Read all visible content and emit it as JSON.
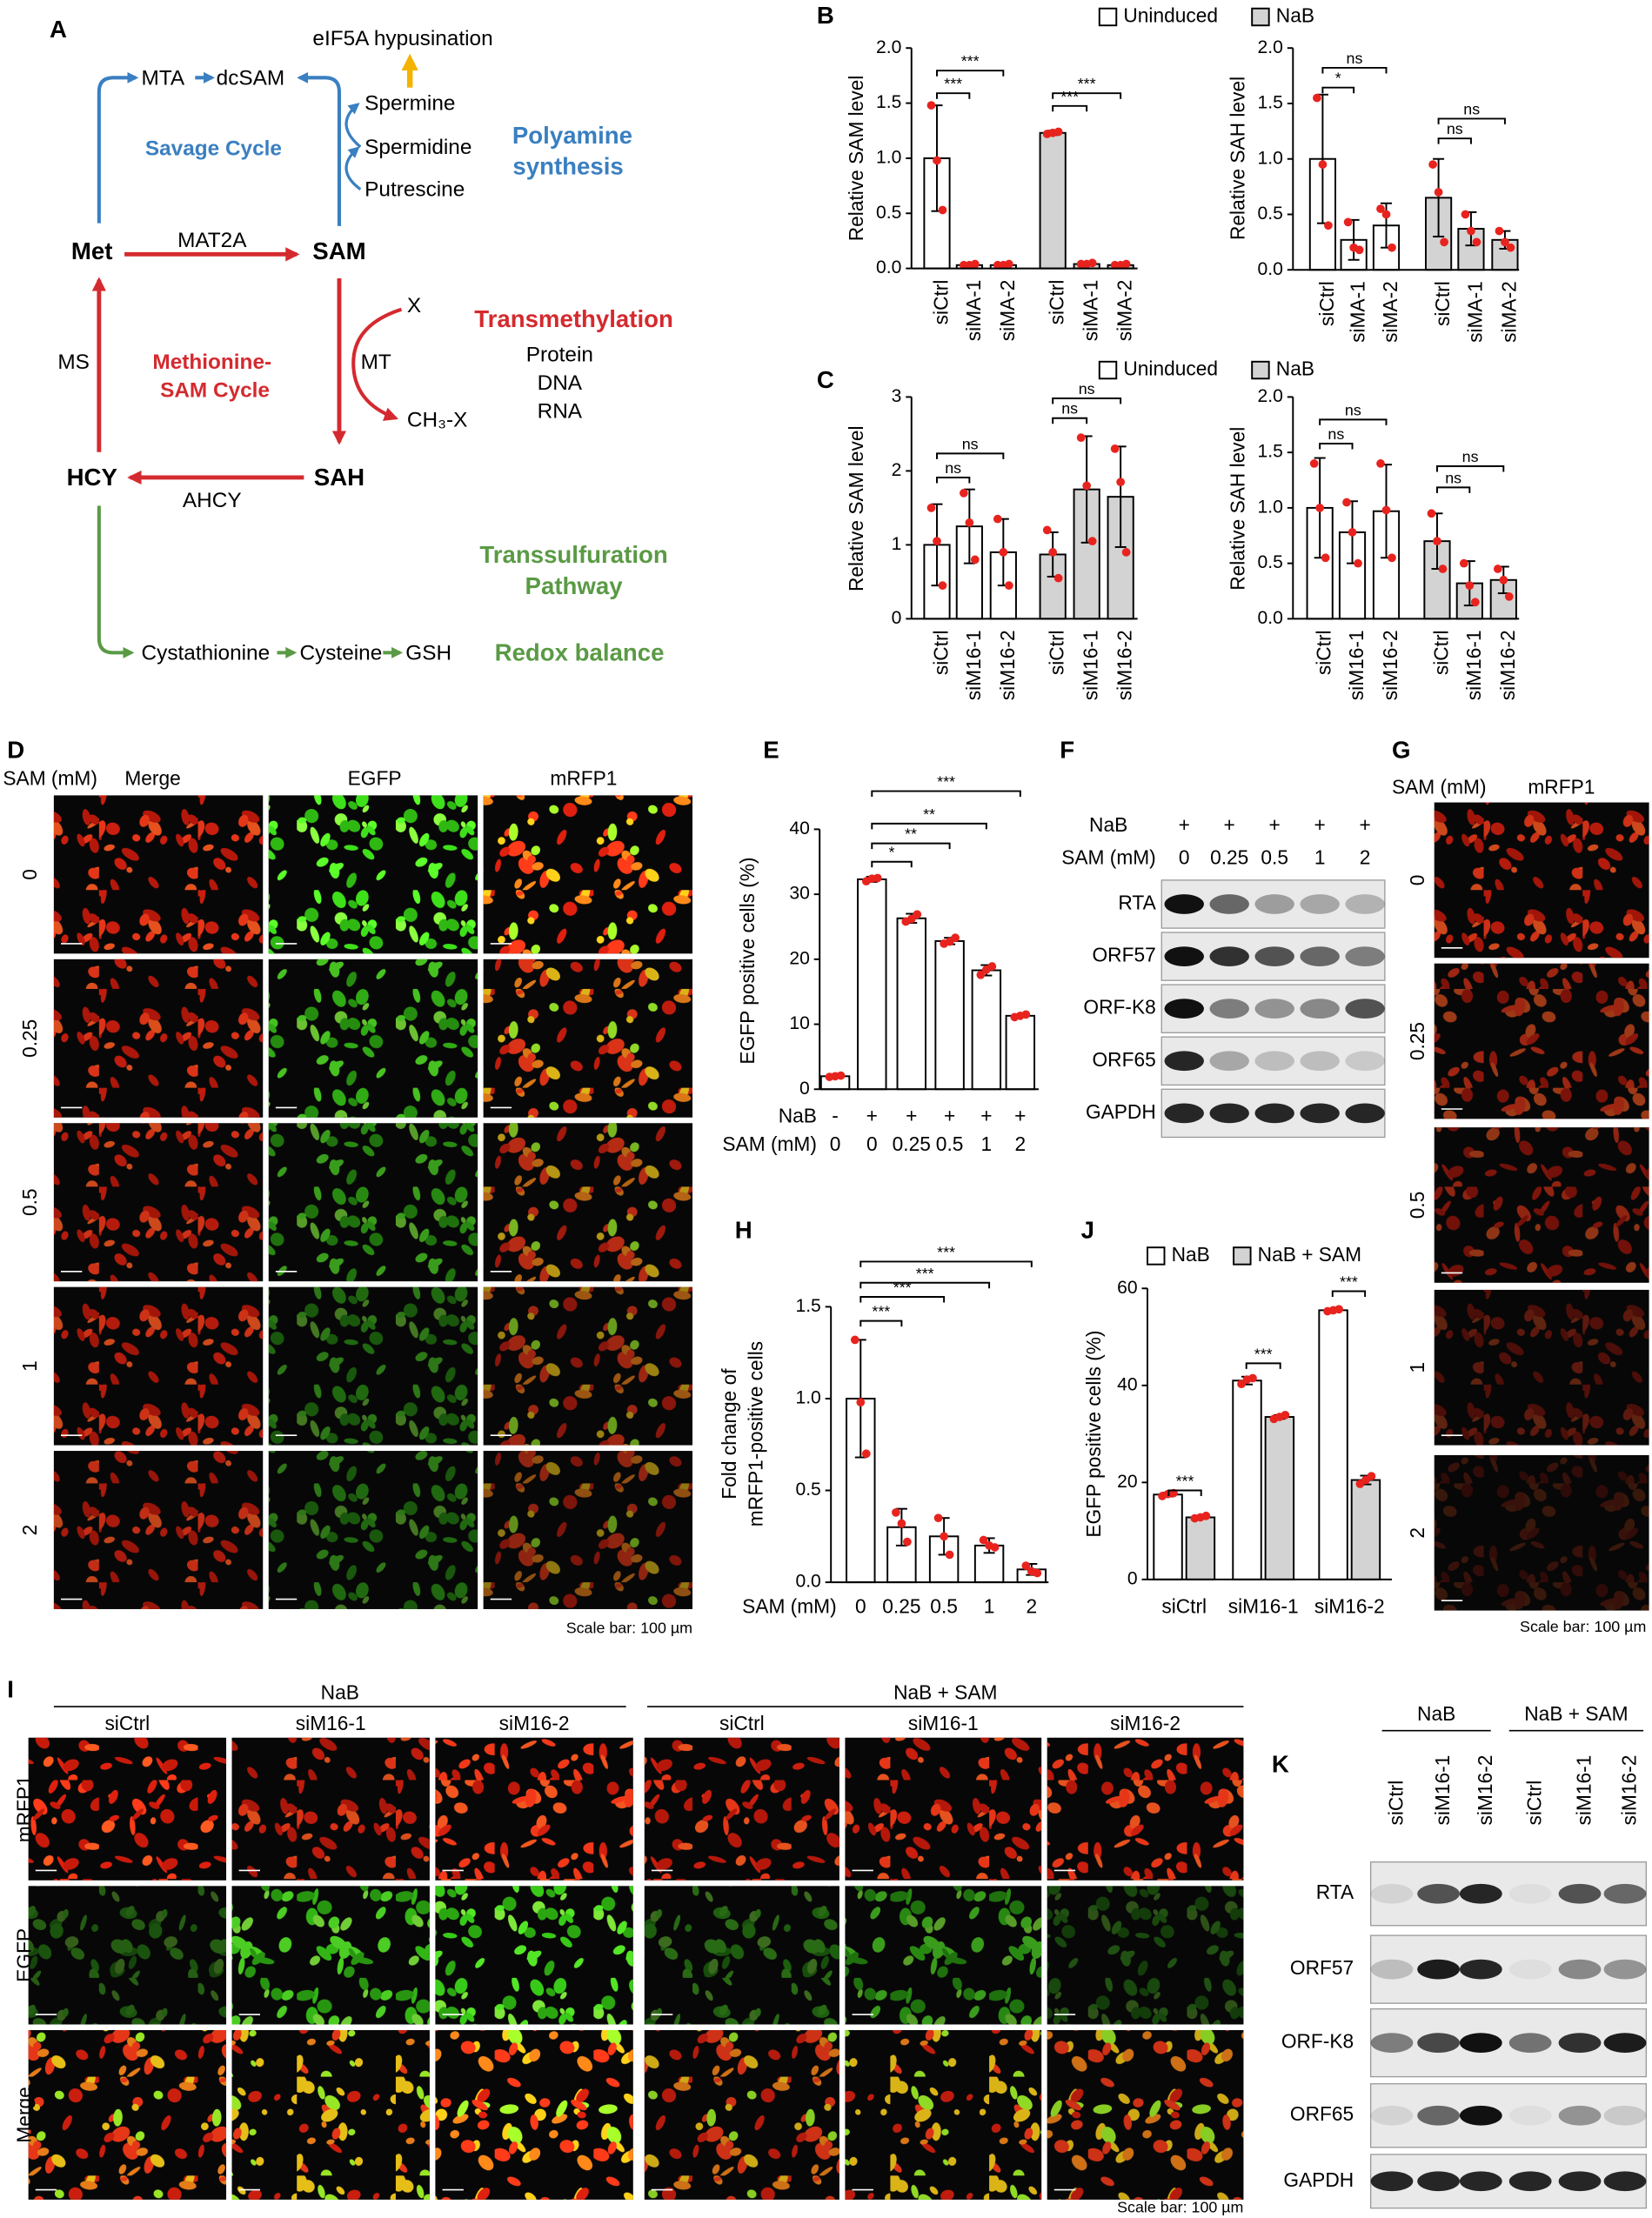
{
  "panel_labels": [
    "A",
    "B",
    "C",
    "D",
    "E",
    "F",
    "G",
    "H",
    "I",
    "J",
    "K"
  ],
  "diagram": {
    "texts": [
      "eIF5A hypusination",
      "MTA",
      "dcSAM",
      "Spermine",
      "Spermidine",
      "Putrescine",
      "Savage Cycle",
      "Polyamine",
      "synthesis",
      "Met",
      "MAT2A",
      "SAM",
      "MS",
      "Methionine-",
      "SAM Cycle",
      "MT",
      "X",
      "CH₃-X",
      "Transmethylation",
      "Protein",
      "DNA",
      "RNA",
      "HCY",
      "SAH",
      "AHCY",
      "Transsulfuration",
      "Pathway",
      "Cystathionine",
      "Cysteine",
      "GSH",
      "Redox balance"
    ]
  },
  "chart_data": [
    {
      "type": "bar",
      "ylabel": "Relative SAM level",
      "ylim": [
        0,
        2
      ],
      "yticks": [
        {
          "value": 0,
          "label": "0.0"
        },
        {
          "value": 0.5,
          "label": "0.5"
        },
        {
          "value": 1,
          "label": "1.0"
        },
        {
          "value": 1.5,
          "label": "1.5"
        },
        {
          "value": 2,
          "label": "2.0"
        }
      ],
      "point_color": "#e8231e",
      "categories": [
        "siCtrl",
        "siMA-1",
        "siMA-2",
        "siCtrl",
        "siMA-1",
        "siMA-2"
      ],
      "series": [
        {
          "name": "Uninduced",
          "color": "#ffffff",
          "values": [
            1.0,
            0.03,
            0.03,
            null,
            null,
            null
          ],
          "errors": [
            0.48,
            0.01,
            0.01,
            null,
            null,
            null
          ],
          "points": [
            [
              1.48,
              0.98,
              0.53
            ],
            [
              0.03,
              0.03,
              0.04
            ],
            [
              0.03,
              0.03,
              0.04
            ],
            null,
            null,
            null
          ]
        },
        {
          "name": "NaB",
          "color": "#d3d3d3",
          "values": [
            null,
            null,
            null,
            1.23,
            0.04,
            0.03
          ],
          "errors": [
            null,
            null,
            null,
            0.02,
            0.01,
            0.01
          ],
          "points": [
            null,
            null,
            null,
            [
              1.22,
              1.23,
              1.24
            ],
            [
              0.04,
              0.04,
              0.05
            ],
            [
              0.03,
              0.03,
              0.04
            ]
          ]
        }
      ],
      "annotations": [
        "***",
        "***",
        "***",
        "***"
      ]
    },
    {
      "type": "bar",
      "ylabel": "Relative SAH level",
      "ylim": [
        0,
        2
      ],
      "yticks": [
        {
          "value": 0,
          "label": "0.0"
        },
        {
          "value": 0.5,
          "label": "0.5"
        },
        {
          "value": 1,
          "label": "1.0"
        },
        {
          "value": 1.5,
          "label": "1.5"
        },
        {
          "value": 2,
          "label": "2.0"
        }
      ],
      "point_color": "#e8231e",
      "categories": [
        "siCtrl",
        "siMA-1",
        "siMA-2",
        "siCtrl",
        "siMA-1",
        "siMA-2"
      ],
      "series": [
        {
          "name": "Uninduced",
          "color": "#ffffff",
          "values": [
            1.0,
            0.27,
            0.4,
            null,
            null,
            null
          ],
          "errors": [
            0.58,
            0.18,
            0.2,
            null,
            null,
            null
          ],
          "points": [
            [
              1.55,
              0.95,
              0.4
            ],
            [
              0.43,
              0.2,
              0.18
            ],
            [
              0.55,
              0.5,
              0.2
            ],
            null,
            null,
            null
          ]
        },
        {
          "name": "NaB",
          "color": "#d3d3d3",
          "values": [
            null,
            null,
            null,
            0.65,
            0.37,
            0.27
          ],
          "errors": [
            null,
            null,
            null,
            0.35,
            0.15,
            0.08
          ],
          "points": [
            null,
            null,
            null,
            [
              0.95,
              0.7,
              0.25
            ],
            [
              0.5,
              0.35,
              0.25
            ],
            [
              0.35,
              0.25,
              0.2
            ]
          ]
        }
      ],
      "annotations": [
        "ns",
        "*",
        "ns",
        "ns"
      ]
    },
    {
      "type": "bar",
      "ylabel": "Relative SAM level",
      "ylim": [
        0,
        3
      ],
      "yticks": [
        0,
        1,
        2,
        3
      ],
      "point_color": "#e8231e",
      "categories": [
        "siCtrl",
        "siM16-1",
        "siM16-2",
        "siCtrl",
        "siM16-1",
        "siM16-2"
      ],
      "series": [
        {
          "name": "Uninduced",
          "color": "#ffffff",
          "values": [
            1.0,
            1.25,
            0.9,
            null,
            null,
            null
          ],
          "errors": [
            0.55,
            0.5,
            0.45,
            null,
            null,
            null
          ],
          "points": [
            [
              1.5,
              1.05,
              0.45
            ],
            [
              1.7,
              1.3,
              0.8
            ],
            [
              1.35,
              0.9,
              0.45
            ],
            null,
            null,
            null
          ]
        },
        {
          "name": "NaB",
          "color": "#d3d3d3",
          "values": [
            null,
            null,
            null,
            0.87,
            1.75,
            1.65
          ],
          "errors": [
            null,
            null,
            null,
            0.3,
            0.72,
            0.68
          ],
          "points": [
            null,
            null,
            null,
            [
              1.2,
              0.9,
              0.55
            ],
            [
              2.45,
              1.8,
              1.05
            ],
            [
              2.3,
              1.85,
              0.9
            ]
          ]
        }
      ],
      "annotations": [
        "ns",
        "ns",
        "ns",
        "ns"
      ]
    },
    {
      "type": "bar",
      "ylabel": "Relative SAH level",
      "ylim": [
        0,
        2
      ],
      "yticks": [
        {
          "value": 0,
          "label": "0.0"
        },
        {
          "value": 0.5,
          "label": "0.5"
        },
        {
          "value": 1,
          "label": "1.0"
        },
        {
          "value": 1.5,
          "label": "1.5"
        },
        {
          "value": 2,
          "label": "2.0"
        }
      ],
      "point_color": "#e8231e",
      "categories": [
        "siCtrl",
        "siM16-1",
        "siM16-2",
        "siCtrl",
        "siM16-1",
        "siM16-2"
      ],
      "series": [
        {
          "name": "Uninduced",
          "color": "#ffffff",
          "values": [
            1.0,
            0.78,
            0.97,
            null,
            null,
            null
          ],
          "errors": [
            0.45,
            0.28,
            0.42,
            null,
            null,
            null
          ],
          "points": [
            [
              1.4,
              1.0,
              0.55
            ],
            [
              1.05,
              0.78,
              0.5
            ],
            [
              1.4,
              0.98,
              0.55
            ],
            null,
            null,
            null
          ]
        },
        {
          "name": "NaB",
          "color": "#d3d3d3",
          "values": [
            null,
            null,
            null,
            0.7,
            0.32,
            0.35
          ],
          "errors": [
            null,
            null,
            null,
            0.25,
            0.2,
            0.12
          ],
          "points": [
            null,
            null,
            null,
            [
              0.95,
              0.7,
              0.45
            ],
            [
              0.5,
              0.3,
              0.15
            ],
            [
              0.45,
              0.35,
              0.2
            ]
          ]
        }
      ],
      "annotations": [
        "ns",
        "ns",
        "ns",
        "ns"
      ]
    },
    {
      "type": "bar",
      "ylabel": "EGFP positive cells (%)",
      "ylim": [
        0,
        40
      ],
      "yticks": [
        0,
        10,
        20,
        30,
        40
      ],
      "point_color": "#e8231e",
      "category_rows": [
        {
          "label": "NaB",
          "values": [
            "-",
            "+",
            "+",
            "+",
            "+",
            "+"
          ]
        },
        {
          "label": "SAM (mM)",
          "values": [
            "0",
            "0",
            "0.25",
            "0.5",
            "1",
            "2"
          ]
        }
      ],
      "series": [
        {
          "color": "#ffffff",
          "values": [
            2.0,
            32.3,
            26.3,
            22.8,
            18.3,
            11.3
          ],
          "errors": [
            0.2,
            0.4,
            0.7,
            0.5,
            0.8,
            0.2
          ],
          "points": [
            [
              1.9,
              2.0,
              2.1
            ],
            [
              32.0,
              32.4,
              32.5
            ],
            [
              25.8,
              26.2,
              26.9
            ],
            [
              22.4,
              22.7,
              23.3
            ],
            [
              17.6,
              18.4,
              18.9
            ],
            [
              11.1,
              11.3,
              11.5
            ]
          ]
        }
      ],
      "annotations": [
        "***",
        "**",
        "**",
        "*"
      ]
    },
    {
      "type": "bar",
      "ylabel": [
        "Fold change of",
        "mRFP1-positive cells"
      ],
      "ylim": [
        0,
        1.5
      ],
      "yticks": [
        {
          "value": 0,
          "label": "0.0"
        },
        {
          "value": 0.5,
          "label": "0.5"
        },
        {
          "value": 1,
          "label": "1.0"
        },
        {
          "value": 1.5,
          "label": "1.5"
        }
      ],
      "point_color": "#e8231e",
      "category_rows": [
        {
          "label": "SAM (mM)",
          "values": [
            "0",
            "0.25",
            "0.5",
            "1",
            "2"
          ]
        }
      ],
      "series": [
        {
          "color": "#ffffff",
          "values": [
            1.0,
            0.3,
            0.25,
            0.2,
            0.07
          ],
          "errors": [
            0.32,
            0.1,
            0.1,
            0.04,
            0.03
          ],
          "points": [
            [
              1.32,
              0.98,
              0.7
            ],
            [
              0.38,
              0.32,
              0.22
            ],
            [
              0.35,
              0.25,
              0.15
            ],
            [
              0.23,
              0.2,
              0.19
            ],
            [
              0.09,
              0.06,
              0.05
            ]
          ]
        }
      ],
      "annotations": [
        "***",
        "***",
        "***",
        "***"
      ]
    },
    {
      "type": "bar",
      "ylabel": "EGFP positive cells (%)",
      "ylim": [
        0,
        60
      ],
      "yticks": [
        0,
        20,
        40,
        60
      ],
      "point_color": "#e8231e",
      "categories": [
        "siCtrl",
        "siM16-1",
        "siM16-2"
      ],
      "series": [
        {
          "name": "NaB",
          "color": "#ffffff",
          "values": [
            17.5,
            41.0,
            55.5
          ],
          "errors": [
            0.4,
            0.8,
            0.3
          ],
          "points": [
            [
              17.2,
              17.6,
              17.8
            ],
            [
              40.3,
              41.2,
              41.5
            ],
            [
              55.3,
              55.5,
              55.7
            ]
          ]
        },
        {
          "name": "NaB + SAM",
          "color": "#d3d3d3",
          "values": [
            12.8,
            33.5,
            20.5
          ],
          "errors": [
            0.3,
            0.4,
            0.9
          ],
          "points": [
            [
              12.6,
              12.8,
              13.1
            ],
            [
              33.1,
              33.5,
              33.9
            ],
            [
              19.7,
              20.5,
              21.3
            ]
          ]
        }
      ],
      "annotations": [
        "***",
        "***",
        "***"
      ]
    }
  ],
  "micrographs_D": {
    "row_title": "SAM (mM)",
    "columns": [
      "Merge",
      "EGFP",
      "mRFP1"
    ],
    "rows": [
      "0",
      "0.25",
      "0.5",
      "1",
      "2"
    ],
    "scale_note": "Scale bar: 100 µm"
  },
  "micrographs_G": {
    "row_title": "SAM (mM)",
    "columns": [
      "mRFP1"
    ],
    "rows": [
      "0",
      "0.25",
      "0.5",
      "1",
      "2"
    ],
    "scale_note": "Scale bar: 100 µm"
  },
  "micrographs_I": {
    "groups": [
      "NaB",
      "NaB + SAM"
    ],
    "columns": [
      "siCtrl",
      "siM16-1",
      "siM16-2",
      "siCtrl",
      "siM16-1",
      "siM16-2"
    ],
    "rows": [
      "mRFP1",
      "EGFP",
      "Merge"
    ],
    "scale_note": "Scale bar: 100 µm"
  },
  "blot_F": {
    "header_rows": [
      {
        "label": "NaB",
        "values": [
          "+",
          "+",
          "+",
          "+",
          "+"
        ]
      },
      {
        "label": "SAM (mM)",
        "values": [
          "0",
          "0.25",
          "0.5",
          "1",
          "2"
        ]
      }
    ],
    "rows": [
      "RTA",
      "ORF57",
      "ORF-K8",
      "ORF65",
      "GAPDH"
    ]
  },
  "blot_K": {
    "groups": [
      "NaB",
      "NaB + SAM"
    ],
    "columns": [
      "siCtrl",
      "siM16-1",
      "siM16-2",
      "siCtrl",
      "siM16-1",
      "siM16-2"
    ],
    "rows": [
      "RTA",
      "ORF57",
      "ORF-K8",
      "ORF65",
      "GAPDH"
    ]
  }
}
